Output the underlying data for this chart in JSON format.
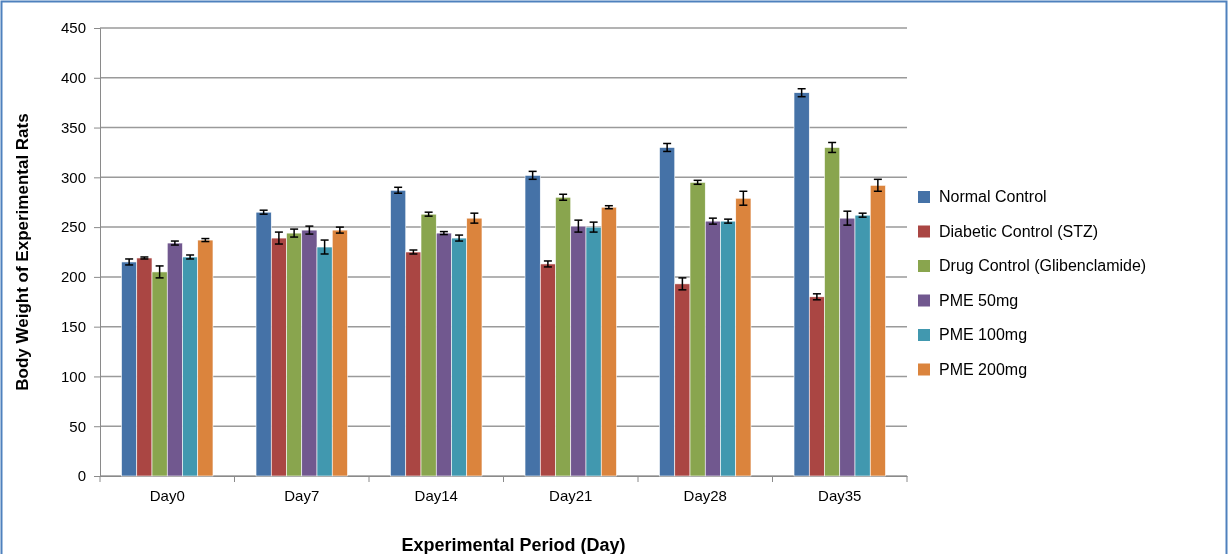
{
  "chart_data": {
    "type": "bar",
    "xlabel": "Experimental Period (Day)",
    "ylabel": "Body Weight of Experimental Rats",
    "categories": [
      "Day0",
      "Day7",
      "Day14",
      "Day21",
      "Day28",
      "Day35"
    ],
    "series": [
      {
        "name": "Normal Control",
        "color": "#4572a7",
        "values": [
          215,
          265,
          287,
          302,
          330,
          385
        ],
        "errors": [
          3,
          2,
          3,
          4,
          4,
          4
        ]
      },
      {
        "name": "Diabetic Control (STZ)",
        "color": "#aa4643",
        "values": [
          219,
          239,
          225,
          213,
          193,
          180
        ],
        "errors": [
          1,
          6,
          2,
          3,
          6,
          3
        ]
      },
      {
        "name": "Drug Control (Glibenclamide)",
        "color": "#89a54e",
        "values": [
          205,
          244,
          263,
          280,
          295,
          330
        ],
        "errors": [
          6,
          4,
          2,
          3,
          2,
          5
        ]
      },
      {
        "name": "PME 50mg",
        "color": "#71588f",
        "values": [
          234,
          247,
          244,
          251,
          256,
          259
        ],
        "errors": [
          2,
          4,
          1.5,
          6,
          3,
          7
        ]
      },
      {
        "name": "PME 100mg",
        "color": "#4198af",
        "values": [
          220,
          230,
          239,
          250,
          256,
          262
        ],
        "errors": [
          2,
          7,
          3,
          5,
          2,
          2
        ]
      },
      {
        "name": "PME 200mg",
        "color": "#db843d",
        "values": [
          237,
          247,
          259,
          270,
          279,
          292
        ],
        "errors": [
          1.5,
          3,
          5,
          1.5,
          7,
          6
        ]
      }
    ],
    "ylim": [
      0,
      450
    ],
    "yticks": [
      0,
      50,
      100,
      150,
      200,
      250,
      300,
      350,
      400,
      450
    ],
    "grid": "y",
    "legend": "right"
  }
}
